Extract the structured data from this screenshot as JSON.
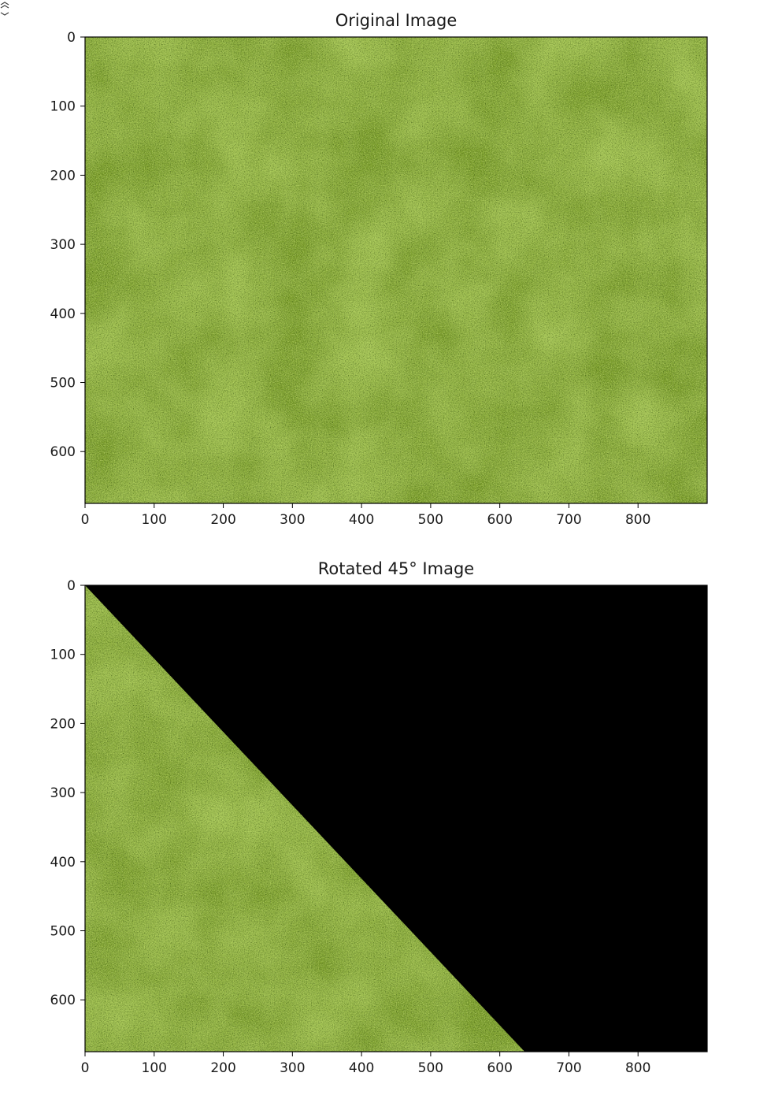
{
  "chart_data": [
    {
      "type": "image",
      "title": "Original Image",
      "x_ticks": [
        0,
        100,
        200,
        300,
        400,
        500,
        600,
        700,
        800
      ],
      "y_ticks": [
        0,
        100,
        200,
        300,
        400,
        500,
        600
      ],
      "xlim": [
        0,
        900
      ],
      "ylim": [
        675,
        0
      ],
      "y_axis_inverted": true,
      "content": "grass texture",
      "texture_colors": {
        "base": "#7fa232",
        "light": "#a8c85a",
        "dark": "#4f6f1e"
      }
    },
    {
      "type": "image",
      "title": "Rotated 45° Image",
      "x_ticks": [
        0,
        100,
        200,
        300,
        400,
        500,
        600,
        700,
        800
      ],
      "y_ticks": [
        0,
        100,
        200,
        300,
        400,
        500,
        600
      ],
      "xlim": [
        0,
        900
      ],
      "ylim": [
        675,
        0
      ],
      "y_axis_inverted": true,
      "content": "rotated grass texture with black fill",
      "visible_region_polygon": [
        [
          0,
          0
        ],
        [
          636,
          675
        ],
        [
          0,
          675
        ]
      ],
      "fill_color": "#000000",
      "texture_colors": {
        "base": "#7fa232",
        "light": "#a8c85a",
        "dark": "#4f6f1e"
      }
    }
  ],
  "corner_icon": "expand-icon"
}
